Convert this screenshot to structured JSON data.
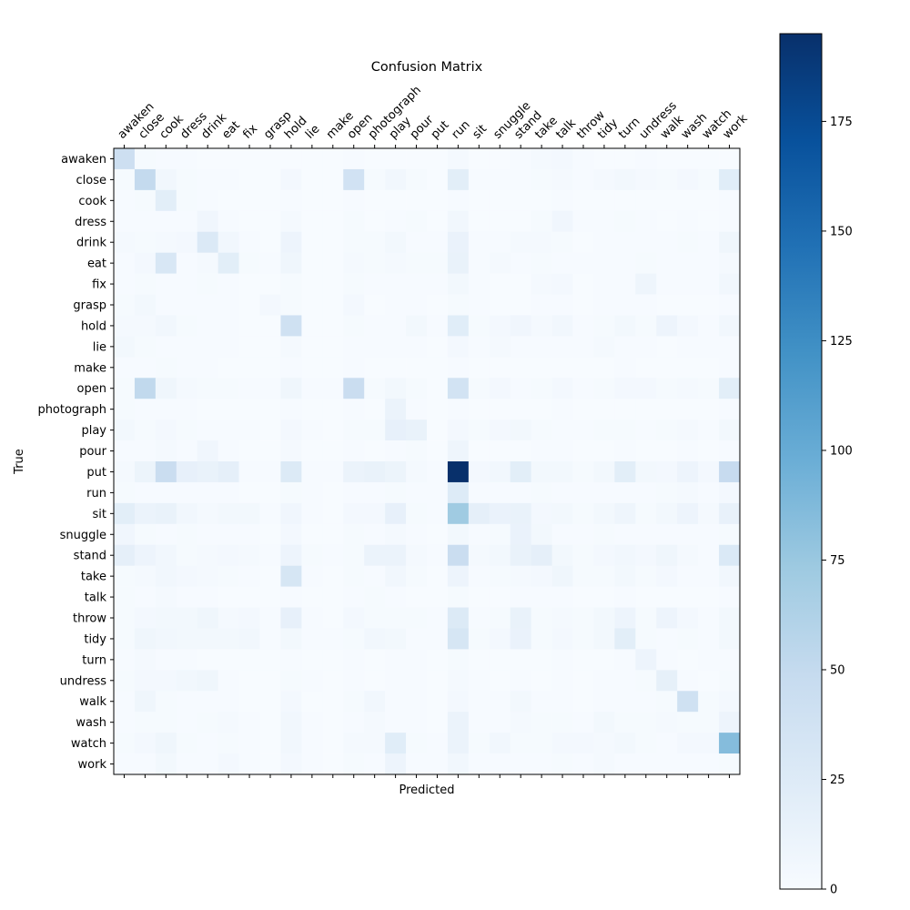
{
  "chart_data": {
    "type": "heatmap",
    "title": "Confusion Matrix",
    "xlabel": "Predicted",
    "ylabel": "True",
    "labels": [
      "awaken",
      "close",
      "cook",
      "dress",
      "drink",
      "eat",
      "fix",
      "grasp",
      "hold",
      "lie",
      "make",
      "open",
      "photograph",
      "play",
      "pour",
      "put",
      "run",
      "sit",
      "snuggle",
      "stand",
      "take",
      "talk",
      "throw",
      "tidy",
      "turn",
      "undress",
      "walk",
      "wash",
      "watch",
      "work"
    ],
    "x_tick_labels": [
      "awaken",
      "close",
      "cook",
      "dress",
      "drink",
      "eat",
      "fix",
      "grasp",
      "hold",
      "lie",
      "make",
      "open",
      "photograph",
      "play",
      "pour",
      "put",
      "run",
      "sit",
      "snuggle",
      "stand",
      "take",
      "talk",
      "throw",
      "tidy",
      "turn",
      "undress",
      "walk",
      "wash",
      "watch",
      "work"
    ],
    "y_tick_labels": [
      "awaken",
      "close",
      "cook",
      "dress",
      "drink",
      "eat",
      "fix",
      "grasp",
      "hold",
      "lie",
      "make",
      "open",
      "photograph",
      "play",
      "pour",
      "put",
      "run",
      "sit",
      "snuggle",
      "stand",
      "take",
      "talk",
      "throw",
      "tidy",
      "turn",
      "undress",
      "walk",
      "wash",
      "watch",
      "work"
    ],
    "matrix": [
      [
        42,
        2,
        1,
        1,
        0,
        0,
        0,
        0,
        0,
        0,
        0,
        1,
        0,
        0,
        0,
        0,
        3,
        0,
        0,
        1,
        3,
        4,
        1,
        0,
        0,
        1,
        0,
        0,
        0,
        0
      ],
      [
        2,
        50,
        6,
        2,
        1,
        1,
        0,
        0,
        4,
        0,
        0,
        38,
        2,
        6,
        2,
        0,
        20,
        1,
        1,
        1,
        2,
        3,
        1,
        3,
        5,
        3,
        2,
        4,
        2,
        22
      ],
      [
        1,
        2,
        20,
        2,
        1,
        0,
        0,
        0,
        1,
        0,
        0,
        1,
        0,
        0,
        0,
        0,
        1,
        0,
        0,
        0,
        0,
        1,
        0,
        0,
        0,
        0,
        0,
        0,
        0,
        1
      ],
      [
        1,
        1,
        1,
        1,
        7,
        1,
        0,
        0,
        3,
        0,
        0,
        2,
        0,
        1,
        2,
        0,
        6,
        0,
        0,
        0,
        2,
        7,
        1,
        1,
        2,
        1,
        0,
        1,
        0,
        1
      ],
      [
        3,
        2,
        3,
        4,
        27,
        6,
        1,
        0,
        10,
        0,
        0,
        2,
        2,
        5,
        1,
        1,
        13,
        1,
        1,
        3,
        3,
        2,
        0,
        1,
        1,
        1,
        1,
        2,
        1,
        8
      ],
      [
        1,
        4,
        30,
        1,
        3,
        20,
        2,
        1,
        8,
        0,
        0,
        3,
        2,
        3,
        2,
        2,
        14,
        1,
        3,
        1,
        2,
        1,
        1,
        1,
        1,
        2,
        1,
        1,
        1,
        3
      ],
      [
        1,
        2,
        1,
        1,
        2,
        1,
        0,
        0,
        2,
        0,
        0,
        2,
        1,
        1,
        1,
        1,
        5,
        1,
        0,
        0,
        3,
        4,
        0,
        1,
        1,
        9,
        1,
        1,
        1,
        6
      ],
      [
        2,
        5,
        1,
        1,
        1,
        1,
        0,
        4,
        2,
        0,
        0,
        4,
        0,
        1,
        1,
        0,
        2,
        1,
        0,
        0,
        1,
        1,
        0,
        1,
        1,
        1,
        0,
        0,
        0,
        1
      ],
      [
        3,
        3,
        6,
        2,
        1,
        1,
        0,
        0,
        40,
        0,
        0,
        2,
        1,
        1,
        5,
        1,
        22,
        2,
        4,
        7,
        3,
        6,
        1,
        2,
        5,
        2,
        10,
        4,
        1,
        6
      ],
      [
        5,
        2,
        1,
        1,
        1,
        1,
        0,
        0,
        3,
        0,
        0,
        1,
        1,
        1,
        1,
        0,
        4,
        1,
        3,
        1,
        1,
        1,
        1,
        3,
        1,
        1,
        0,
        1,
        1,
        1
      ],
      [
        1,
        1,
        2,
        1,
        1,
        0,
        0,
        0,
        1,
        0,
        0,
        1,
        0,
        0,
        0,
        0,
        1,
        0,
        0,
        0,
        0,
        0,
        0,
        0,
        1,
        0,
        0,
        0,
        0,
        1
      ],
      [
        2,
        52,
        8,
        3,
        2,
        2,
        1,
        1,
        8,
        1,
        1,
        45,
        2,
        5,
        2,
        0,
        37,
        2,
        4,
        1,
        2,
        4,
        1,
        2,
        4,
        4,
        2,
        3,
        2,
        20
      ],
      [
        2,
        1,
        1,
        1,
        0,
        0,
        0,
        0,
        1,
        0,
        0,
        1,
        0,
        12,
        1,
        0,
        1,
        0,
        0,
        0,
        0,
        1,
        0,
        0,
        0,
        0,
        0,
        0,
        0,
        1
      ],
      [
        5,
        2,
        4,
        2,
        1,
        1,
        1,
        0,
        4,
        1,
        0,
        2,
        2,
        16,
        14,
        0,
        4,
        2,
        4,
        5,
        2,
        1,
        1,
        2,
        2,
        1,
        2,
        3,
        1,
        5
      ],
      [
        1,
        1,
        3,
        1,
        7,
        1,
        0,
        0,
        3,
        0,
        0,
        1,
        0,
        1,
        2,
        0,
        9,
        0,
        0,
        0,
        1,
        1,
        0,
        0,
        1,
        0,
        0,
        1,
        0,
        1
      ],
      [
        3,
        11,
        45,
        16,
        14,
        18,
        1,
        1,
        26,
        1,
        1,
        12,
        14,
        11,
        3,
        1,
        195,
        4,
        6,
        20,
        5,
        5,
        2,
        5,
        20,
        5,
        4,
        10,
        4,
        48
      ],
      [
        2,
        1,
        1,
        1,
        1,
        1,
        0,
        0,
        2,
        1,
        0,
        1,
        1,
        2,
        1,
        1,
        25,
        1,
        1,
        1,
        2,
        1,
        1,
        1,
        1,
        1,
        2,
        3,
        1,
        4
      ],
      [
        20,
        12,
        14,
        6,
        3,
        5,
        5,
        1,
        7,
        1,
        0,
        4,
        4,
        16,
        2,
        1,
        72,
        18,
        13,
        14,
        4,
        5,
        2,
        5,
        9,
        2,
        5,
        10,
        3,
        15
      ],
      [
        7,
        2,
        1,
        2,
        1,
        1,
        1,
        0,
        4,
        0,
        0,
        2,
        1,
        3,
        1,
        0,
        5,
        1,
        2,
        13,
        5,
        1,
        1,
        2,
        1,
        1,
        1,
        1,
        1,
        2
      ],
      [
        18,
        10,
        6,
        2,
        3,
        4,
        3,
        1,
        10,
        2,
        1,
        2,
        12,
        12,
        3,
        1,
        45,
        3,
        5,
        14,
        18,
        5,
        2,
        4,
        6,
        4,
        8,
        3,
        1,
        28
      ],
      [
        2,
        3,
        6,
        4,
        3,
        2,
        1,
        0,
        32,
        1,
        0,
        2,
        1,
        6,
        2,
        0,
        10,
        1,
        2,
        3,
        4,
        8,
        2,
        2,
        5,
        2,
        4,
        1,
        1,
        6
      ],
      [
        2,
        1,
        3,
        1,
        1,
        0,
        0,
        0,
        1,
        0,
        0,
        1,
        2,
        1,
        0,
        0,
        2,
        0,
        0,
        1,
        1,
        1,
        0,
        0,
        1,
        0,
        0,
        0,
        0,
        1
      ],
      [
        2,
        4,
        5,
        5,
        8,
        3,
        4,
        1,
        16,
        1,
        0,
        4,
        2,
        2,
        2,
        1,
        26,
        1,
        2,
        14,
        2,
        3,
        2,
        5,
        10,
        2,
        10,
        4,
        1,
        5
      ],
      [
        2,
        8,
        6,
        5,
        5,
        5,
        6,
        1,
        5,
        1,
        1,
        2,
        6,
        5,
        1,
        1,
        32,
        2,
        4,
        13,
        2,
        4,
        2,
        5,
        20,
        2,
        1,
        2,
        1,
        5
      ],
      [
        1,
        3,
        1,
        1,
        0,
        0,
        0,
        0,
        1,
        0,
        0,
        1,
        0,
        1,
        1,
        0,
        2,
        0,
        0,
        0,
        0,
        1,
        0,
        0,
        1,
        10,
        1,
        0,
        1,
        1
      ],
      [
        2,
        4,
        4,
        6,
        8,
        1,
        0,
        0,
        2,
        1,
        0,
        1,
        0,
        1,
        1,
        0,
        3,
        1,
        0,
        1,
        0,
        1,
        0,
        1,
        1,
        2,
        17,
        1,
        0,
        2
      ],
      [
        1,
        8,
        2,
        1,
        1,
        1,
        0,
        0,
        4,
        0,
        0,
        2,
        6,
        1,
        1,
        0,
        4,
        1,
        1,
        5,
        1,
        1,
        0,
        1,
        1,
        1,
        2,
        40,
        2,
        4
      ],
      [
        1,
        2,
        2,
        1,
        2,
        3,
        1,
        0,
        6,
        1,
        0,
        1,
        3,
        1,
        1,
        0,
        12,
        1,
        1,
        3,
        2,
        2,
        1,
        5,
        2,
        2,
        3,
        2,
        2,
        10
      ],
      [
        2,
        4,
        8,
        2,
        1,
        2,
        1,
        0,
        6,
        1,
        0,
        3,
        3,
        22,
        2,
        1,
        12,
        2,
        6,
        2,
        2,
        4,
        4,
        3,
        5,
        2,
        1,
        4,
        4,
        85
      ],
      [
        1,
        1,
        5,
        1,
        1,
        4,
        1,
        0,
        4,
        1,
        0,
        2,
        1,
        10,
        1,
        1,
        6,
        1,
        1,
        1,
        1,
        2,
        1,
        3,
        1,
        1,
        1,
        1,
        1,
        2
      ]
    ],
    "colormap": [
      "#f7fbff",
      "#deebf7",
      "#c6dbef",
      "#9ecae1",
      "#6baed6",
      "#4292c6",
      "#2171b5",
      "#08519c",
      "#08306b"
    ],
    "colorbar": {
      "min": 0,
      "max": 195,
      "ticks": [
        0,
        25,
        50,
        75,
        100,
        125,
        150,
        175
      ]
    },
    "grid": false
  }
}
